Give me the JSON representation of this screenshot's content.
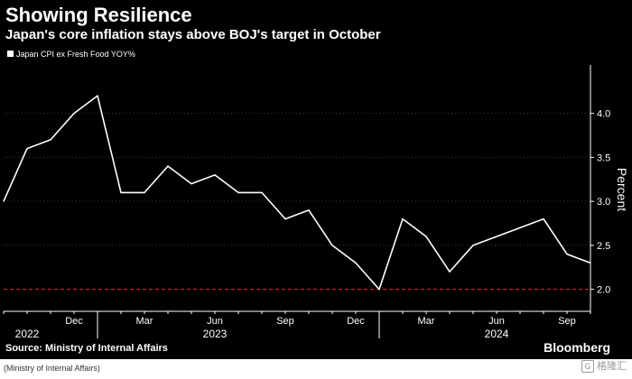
{
  "caption": "(Ministry of Internal Affairs)",
  "watermark": {
    "text": "格隆汇",
    "icon": "g-logo-icon"
  },
  "colors": {
    "background": "#000000",
    "line": "#ffffff",
    "target_line": "#c4202c",
    "axis": "#ffffff"
  },
  "chart_data": {
    "type": "line",
    "title": "Showing Resilience",
    "subtitle": "Japan's core inflation stays above BOJ's target in October",
    "legend": "Japan CPI ex Fresh Food YOY%",
    "legend_position": "top-left",
    "ylabel": "Percent",
    "ylim": [
      1.75,
      4.55
    ],
    "yticks": [
      "2.0",
      "2.5",
      "3.0",
      "3.5",
      "4.0"
    ],
    "reference_line": {
      "value": 2.0,
      "style": "dashed"
    },
    "x_range": [
      "2022-09",
      "2024-10"
    ],
    "month_ticks": [
      "Dec",
      "Mar",
      "Jun",
      "Sep",
      "Dec",
      "Mar",
      "Jun",
      "Sep"
    ],
    "month_tick_dates": [
      "2022-12",
      "2023-03",
      "2023-06",
      "2023-09",
      "2023-12",
      "2024-03",
      "2024-06",
      "2024-09"
    ],
    "year_labels": [
      "2022",
      "2023",
      "2024"
    ],
    "year_label_dates": [
      "2022-10",
      "2023-06",
      "2024-06"
    ],
    "series": [
      {
        "name": "Japan CPI ex Fresh Food YOY%",
        "x": [
          "2022-09",
          "2022-10",
          "2022-11",
          "2022-12",
          "2023-01",
          "2023-02",
          "2023-03",
          "2023-04",
          "2023-05",
          "2023-06",
          "2023-07",
          "2023-08",
          "2023-09",
          "2023-10",
          "2023-11",
          "2023-12",
          "2024-01",
          "2024-02",
          "2024-03",
          "2024-04",
          "2024-05",
          "2024-06",
          "2024-07",
          "2024-08",
          "2024-09",
          "2024-10"
        ],
        "values": [
          3.0,
          3.6,
          3.7,
          4.0,
          4.2,
          3.1,
          3.1,
          3.4,
          3.2,
          3.3,
          3.1,
          3.1,
          2.8,
          2.9,
          2.5,
          2.3,
          2.0,
          2.8,
          2.6,
          2.2,
          2.5,
          2.6,
          2.7,
          2.8,
          2.4,
          2.3
        ]
      }
    ],
    "source": "Source: Ministry of Internal Affairs",
    "brand": "Bloomberg"
  }
}
